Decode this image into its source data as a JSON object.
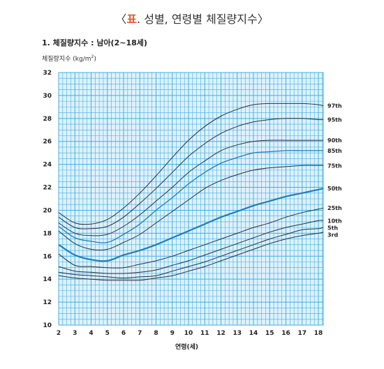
{
  "header": {
    "bracket_open": "〈",
    "accent": "표",
    "title_rest": ". 성별, 연령별 체질량지수",
    "bracket_close": "〉"
  },
  "section_title": "1. 체질량지수 : 남아(2~18세)",
  "colors": {
    "grid_fill": "#dff1fb",
    "grid_line": "#3fb0e2",
    "curve_dark": "#2a3040",
    "curve_blue": "#1f7fb8",
    "accent": "#e2572c"
  },
  "chart_data": {
    "type": "line",
    "title": "",
    "ylabel": "체질량지수 (kg/m²)",
    "ylabel_text": "체질량지수 (kg/m",
    "ylabel_sup": "2",
    "ylabel_close": ")",
    "xlabel": "연령(세)",
    "xlim": [
      2,
      18.3
    ],
    "ylim": [
      10,
      32
    ],
    "grid": true,
    "legend": "right-end labels",
    "x_ticks": [
      2,
      3,
      4,
      5,
      6,
      7,
      8,
      9,
      10,
      11,
      12,
      13,
      14,
      15,
      16,
      17,
      18
    ],
    "y_ticks": [
      10,
      12,
      14,
      16,
      18,
      20,
      22,
      24,
      26,
      28,
      30,
      32
    ],
    "x": [
      2,
      3,
      4,
      5,
      6,
      7,
      8,
      9,
      10,
      11,
      12,
      13,
      14,
      15,
      16,
      17,
      18,
      18.3
    ],
    "series": [
      {
        "name": "97th",
        "color": "dark",
        "weight": 1,
        "values": [
          19.8,
          18.9,
          18.8,
          19.2,
          20.2,
          21.5,
          23.0,
          24.6,
          26.1,
          27.3,
          28.2,
          28.8,
          29.2,
          29.3,
          29.3,
          29.3,
          29.2,
          29.1
        ]
      },
      {
        "name": "95th",
        "color": "dark",
        "weight": 1,
        "values": [
          19.4,
          18.5,
          18.4,
          18.6,
          19.4,
          20.6,
          21.9,
          23.3,
          24.7,
          25.8,
          26.7,
          27.3,
          27.7,
          27.9,
          28.0,
          28.0,
          27.9,
          27.9
        ]
      },
      {
        "name": "90th",
        "color": "dark",
        "weight": 1,
        "values": [
          18.9,
          18.0,
          17.8,
          17.9,
          18.6,
          19.6,
          20.8,
          22.0,
          23.3,
          24.3,
          25.2,
          25.7,
          26.0,
          26.1,
          26.1,
          26.1,
          26.1,
          26.1
        ]
      },
      {
        "name": "85th",
        "color": "blue",
        "weight": 1.3,
        "values": [
          18.6,
          17.6,
          17.3,
          17.2,
          17.9,
          18.8,
          20.0,
          21.1,
          22.3,
          23.3,
          24.1,
          24.6,
          25.0,
          25.1,
          25.2,
          25.2,
          25.2,
          25.2
        ]
      },
      {
        "name": "75th",
        "color": "dark",
        "weight": 1,
        "values": [
          18.2,
          17.1,
          16.6,
          16.6,
          17.2,
          17.9,
          18.9,
          19.9,
          20.9,
          21.9,
          22.6,
          23.1,
          23.5,
          23.7,
          23.8,
          23.9,
          23.9,
          23.9
        ]
      },
      {
        "name": "50th",
        "color": "blue",
        "weight": 2.2,
        "values": [
          17.0,
          16.1,
          15.7,
          15.6,
          16.1,
          16.5,
          17.0,
          17.6,
          18.2,
          18.8,
          19.4,
          19.9,
          20.4,
          20.8,
          21.2,
          21.5,
          21.8,
          21.9
        ]
      },
      {
        "name": "25th",
        "color": "dark",
        "weight": 1,
        "values": [
          16.2,
          15.2,
          15.1,
          15.0,
          15.0,
          15.3,
          15.6,
          16.0,
          16.5,
          17.0,
          17.5,
          18.0,
          18.5,
          18.9,
          19.4,
          19.8,
          20.1,
          20.2
        ]
      },
      {
        "name": "10th",
        "color": "dark",
        "weight": 1,
        "values": [
          15.1,
          14.7,
          14.6,
          14.5,
          14.5,
          14.6,
          14.8,
          15.2,
          15.6,
          16.1,
          16.6,
          17.1,
          17.6,
          18.1,
          18.5,
          18.8,
          19.1,
          19.1
        ]
      },
      {
        "name": "5th",
        "color": "dark",
        "weight": 1,
        "values": [
          14.6,
          14.4,
          14.3,
          14.2,
          14.1,
          14.2,
          14.3,
          14.7,
          15.1,
          15.5,
          16.0,
          16.5,
          17.0,
          17.5,
          17.9,
          18.3,
          18.4,
          18.5
        ]
      },
      {
        "name": "3rd",
        "color": "dark",
        "weight": 1,
        "values": [
          14.3,
          14.1,
          14.0,
          13.9,
          13.9,
          13.9,
          14.1,
          14.3,
          14.7,
          15.1,
          15.6,
          16.1,
          16.6,
          17.1,
          17.5,
          17.8,
          18.0,
          18.1
        ]
      }
    ]
  }
}
